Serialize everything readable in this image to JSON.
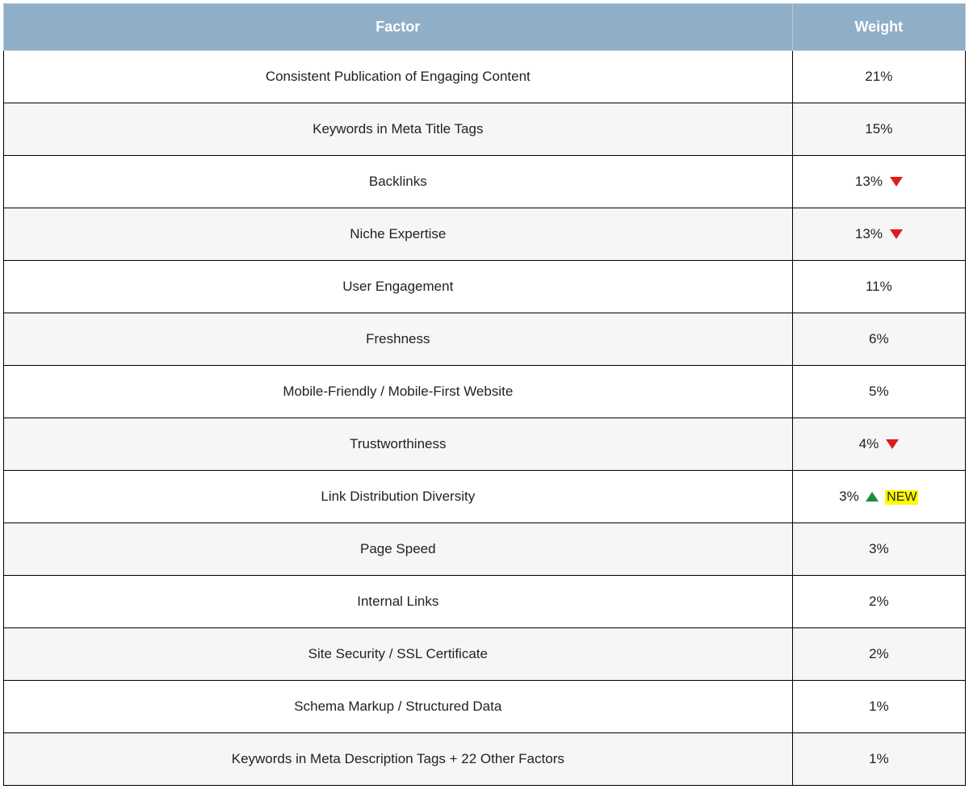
{
  "table": {
    "type": "table",
    "header_bg_color": "#8faec8",
    "header_text_color": "#ffffff",
    "row_alt_bg_color": "#f6f6f6",
    "row_bg_color": "#ffffff",
    "border_color": "#000000",
    "text_color": "#222222",
    "font_size_header": 18,
    "font_size_cell": 17,
    "trend_down_color": "#e11b1b",
    "trend_up_color": "#1a8f3a",
    "new_badge_bg": "#fffb00",
    "columns": [
      {
        "label": "Factor",
        "width_pct": 82
      },
      {
        "label": "Weight",
        "width_pct": 18
      }
    ],
    "rows": [
      {
        "factor": "Consistent Publication of Engaging Content",
        "weight": "21%",
        "trend": null,
        "new": false
      },
      {
        "factor": "Keywords in Meta Title Tags",
        "weight": "15%",
        "trend": null,
        "new": false
      },
      {
        "factor": "Backlinks",
        "weight": "13%",
        "trend": "down",
        "new": false
      },
      {
        "factor": "Niche Expertise",
        "weight": "13%",
        "trend": "down",
        "new": false
      },
      {
        "factor": "User Engagement",
        "weight": "11%",
        "trend": null,
        "new": false
      },
      {
        "factor": "Freshness",
        "weight": "6%",
        "trend": null,
        "new": false
      },
      {
        "factor": "Mobile-Friendly / Mobile-First Website",
        "weight": "5%",
        "trend": null,
        "new": false
      },
      {
        "factor": "Trustworthiness",
        "weight": "4%",
        "trend": "down",
        "new": false
      },
      {
        "factor": "Link Distribution Diversity",
        "weight": "3%",
        "trend": "up",
        "new": true
      },
      {
        "factor": "Page Speed",
        "weight": "3%",
        "trend": null,
        "new": false
      },
      {
        "factor": "Internal Links",
        "weight": "2%",
        "trend": null,
        "new": false
      },
      {
        "factor": "Site Security / SSL Certificate",
        "weight": "2%",
        "trend": null,
        "new": false
      },
      {
        "factor": "Schema Markup / Structured Data",
        "weight": "1%",
        "trend": null,
        "new": false
      },
      {
        "factor": "Keywords in Meta Description Tags + 22 Other Factors",
        "weight": "1%",
        "trend": null,
        "new": false
      }
    ],
    "new_label": "NEW"
  }
}
